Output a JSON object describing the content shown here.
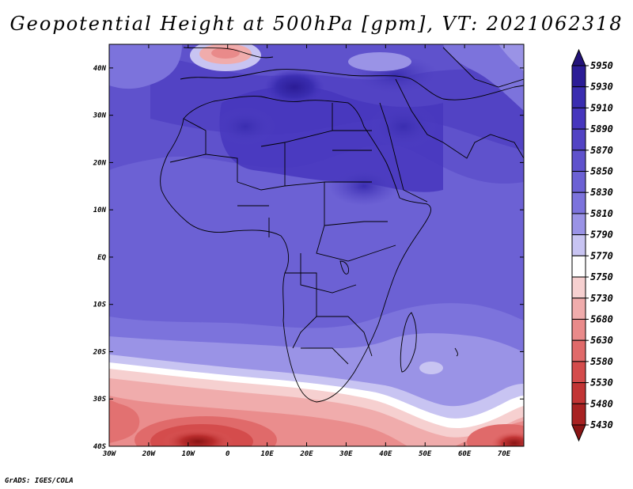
{
  "title": "Geopotential Height at 500hPa [gpm], VT: 2021062318",
  "credit": "GrADS: IGES/COLA",
  "map": {
    "lon_labels": [
      "30W",
      "20W",
      "10W",
      "0",
      "10E",
      "20E",
      "30E",
      "40E",
      "50E",
      "60E",
      "70E"
    ],
    "lat_labels": [
      "40N",
      "30N",
      "20N",
      "10N",
      "EQ",
      "10S",
      "20S",
      "30S",
      "40S"
    ],
    "lon_range": [
      -30,
      75
    ],
    "lat_range": [
      -40,
      45
    ]
  },
  "colorbar": {
    "levels": [
      "5950",
      "5930",
      "5910",
      "5890",
      "5870",
      "5850",
      "5830",
      "5810",
      "5790",
      "5770",
      "5750",
      "5730",
      "5680",
      "5630",
      "5580",
      "5530",
      "5480",
      "5430"
    ],
    "colors": [
      "#23137a",
      "#2b1c96",
      "#3a2db0",
      "#4636bd",
      "#5243c4",
      "#5f52cc",
      "#6c61d4",
      "#7c73dc",
      "#9a93e6",
      "#c8c4f2",
      "#ffffff",
      "#f6d0d0",
      "#f0acac",
      "#e98a8a",
      "#e06a6a",
      "#d44c4c",
      "#c23535",
      "#a82222",
      "#8a1515"
    ]
  }
}
